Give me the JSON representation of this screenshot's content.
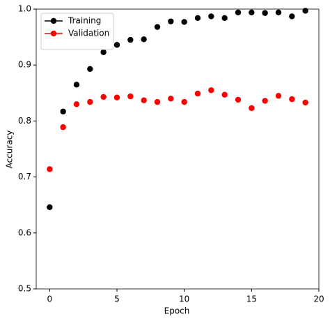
{
  "chart_data": {
    "type": "scatter",
    "x_label": "Epoch",
    "y_label": "Accuracy",
    "x": [
      0,
      1,
      2,
      3,
      4,
      5,
      6,
      7,
      8,
      9,
      10,
      11,
      12,
      13,
      14,
      15,
      16,
      17,
      18,
      19
    ],
    "series": [
      {
        "name": "Training",
        "color": "#000000",
        "values": [
          0.646,
          0.817,
          0.865,
          0.893,
          0.923,
          0.936,
          0.945,
          0.946,
          0.968,
          0.978,
          0.977,
          0.984,
          0.987,
          0.984,
          0.994,
          0.994,
          0.993,
          0.994,
          0.987,
          0.997
        ]
      },
      {
        "name": "Validation",
        "color": "#ff0000",
        "values": [
          0.714,
          0.789,
          0.83,
          0.834,
          0.843,
          0.842,
          0.844,
          0.837,
          0.834,
          0.84,
          0.834,
          0.849,
          0.855,
          0.847,
          0.838,
          0.823,
          0.836,
          0.845,
          0.839,
          0.833
        ]
      }
    ],
    "xlim": [
      -1,
      20
    ],
    "xticks": [
      0,
      5,
      10,
      15,
      20
    ],
    "ylim": [
      0.5,
      1
    ],
    "yticks": [
      0.5,
      0.6,
      0.7,
      0.8,
      0.9,
      {
        "value": 1,
        "label": "1.0"
      }
    ],
    "grid": false,
    "legend": "upper left"
  }
}
